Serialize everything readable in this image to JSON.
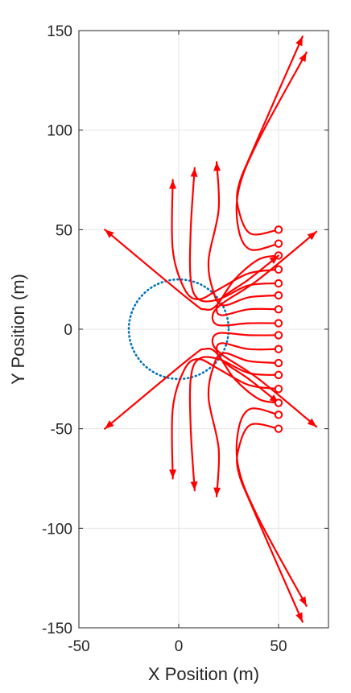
{
  "chart_data": {
    "type": "line",
    "title": "",
    "xlabel": "X Position (m)",
    "ylabel": "Y Position (m)",
    "xlim": [
      -50,
      75
    ],
    "ylim": [
      -150,
      150
    ],
    "xticks": [
      -50,
      0,
      50
    ],
    "yticks": [
      -150,
      -100,
      -50,
      0,
      50,
      100,
      150
    ],
    "xtick_labels": [
      "-50",
      "0",
      "50"
    ],
    "ytick_labels": [
      "-150",
      "-100",
      "-50",
      "0",
      "50",
      "100",
      "150"
    ],
    "grid": true,
    "colors": {
      "trajectory": "#ff0000",
      "boundary": "#0072bd"
    },
    "boundary_circle": {
      "center": [
        0,
        0
      ],
      "radius": 25,
      "style": "dotted"
    },
    "series": [
      {
        "points": [
          [
            50,
            50
          ],
          [
            36,
            48
          ],
          [
            30,
            60
          ],
          [
            30,
            72
          ],
          [
            38,
            92
          ],
          [
            62,
            147
          ]
        ]
      },
      {
        "points": [
          [
            50,
            43
          ],
          [
            36,
            40
          ],
          [
            30,
            50
          ],
          [
            30,
            70
          ],
          [
            40,
            95
          ],
          [
            64,
            139
          ]
        ]
      },
      {
        "points": [
          [
            50,
            37
          ],
          [
            40,
            35
          ],
          [
            28,
            25
          ],
          [
            19,
            12
          ],
          [
            13,
            10
          ],
          [
            5,
            15
          ],
          [
            -37,
            50
          ]
        ]
      },
      {
        "points": [
          [
            50,
            30
          ],
          [
            35,
            28
          ],
          [
            20,
            20
          ],
          [
            10,
            15
          ],
          [
            3,
            20
          ],
          [
            -3,
            40
          ],
          [
            -3,
            75
          ]
        ]
      },
      {
        "points": [
          [
            50,
            23
          ],
          [
            35,
            22
          ],
          [
            20,
            15
          ],
          [
            10,
            15
          ],
          [
            6,
            25
          ],
          [
            6,
            50
          ],
          [
            8,
            81
          ]
        ]
      },
      {
        "points": [
          [
            50,
            17
          ],
          [
            35,
            16
          ],
          [
            22,
            12
          ],
          [
            17,
            20
          ],
          [
            15,
            35
          ],
          [
            20,
            60
          ],
          [
            19,
            84
          ]
        ]
      },
      {
        "points": [
          [
            50,
            10
          ],
          [
            35,
            10
          ],
          [
            22,
            7
          ],
          [
            19,
            10
          ],
          [
            22,
            16
          ],
          [
            35,
            25
          ],
          [
            50,
            37
          ]
        ]
      },
      {
        "points": [
          [
            50,
            3
          ],
          [
            35,
            3
          ],
          [
            20,
            2
          ],
          [
            17,
            7
          ],
          [
            22,
            13
          ],
          [
            40,
            25
          ],
          [
            69,
            49
          ]
        ]
      },
      {
        "points": [
          [
            50,
            -3
          ],
          [
            35,
            -3
          ],
          [
            20,
            -2
          ],
          [
            17,
            -7
          ],
          [
            22,
            -13
          ],
          [
            40,
            -25
          ],
          [
            69,
            -49
          ]
        ]
      },
      {
        "points": [
          [
            50,
            -10
          ],
          [
            35,
            -10
          ],
          [
            22,
            -7
          ],
          [
            19,
            -10
          ],
          [
            22,
            -16
          ],
          [
            35,
            -25
          ],
          [
            50,
            -37
          ]
        ]
      },
      {
        "points": [
          [
            50,
            -17
          ],
          [
            35,
            -16
          ],
          [
            22,
            -12
          ],
          [
            17,
            -20
          ],
          [
            15,
            -35
          ],
          [
            20,
            -60
          ],
          [
            19,
            -84
          ]
        ]
      },
      {
        "points": [
          [
            50,
            -23
          ],
          [
            35,
            -22
          ],
          [
            20,
            -15
          ],
          [
            10,
            -15
          ],
          [
            6,
            -25
          ],
          [
            6,
            -50
          ],
          [
            8,
            -81
          ]
        ]
      },
      {
        "points": [
          [
            50,
            -30
          ],
          [
            35,
            -28
          ],
          [
            20,
            -20
          ],
          [
            10,
            -15
          ],
          [
            3,
            -20
          ],
          [
            -3,
            -40
          ],
          [
            -3,
            -75
          ]
        ]
      },
      {
        "points": [
          [
            50,
            -37
          ],
          [
            40,
            -35
          ],
          [
            28,
            -25
          ],
          [
            19,
            -12
          ],
          [
            13,
            -10
          ],
          [
            5,
            -15
          ],
          [
            -37,
            -50
          ]
        ]
      },
      {
        "points": [
          [
            50,
            -43
          ],
          [
            36,
            -40
          ],
          [
            30,
            -50
          ],
          [
            30,
            -70
          ],
          [
            40,
            -95
          ],
          [
            64,
            -139
          ]
        ]
      },
      {
        "points": [
          [
            50,
            -50
          ],
          [
            36,
            -48
          ],
          [
            30,
            -60
          ],
          [
            30,
            -72
          ],
          [
            38,
            -92
          ],
          [
            62,
            -147
          ]
        ]
      }
    ]
  }
}
